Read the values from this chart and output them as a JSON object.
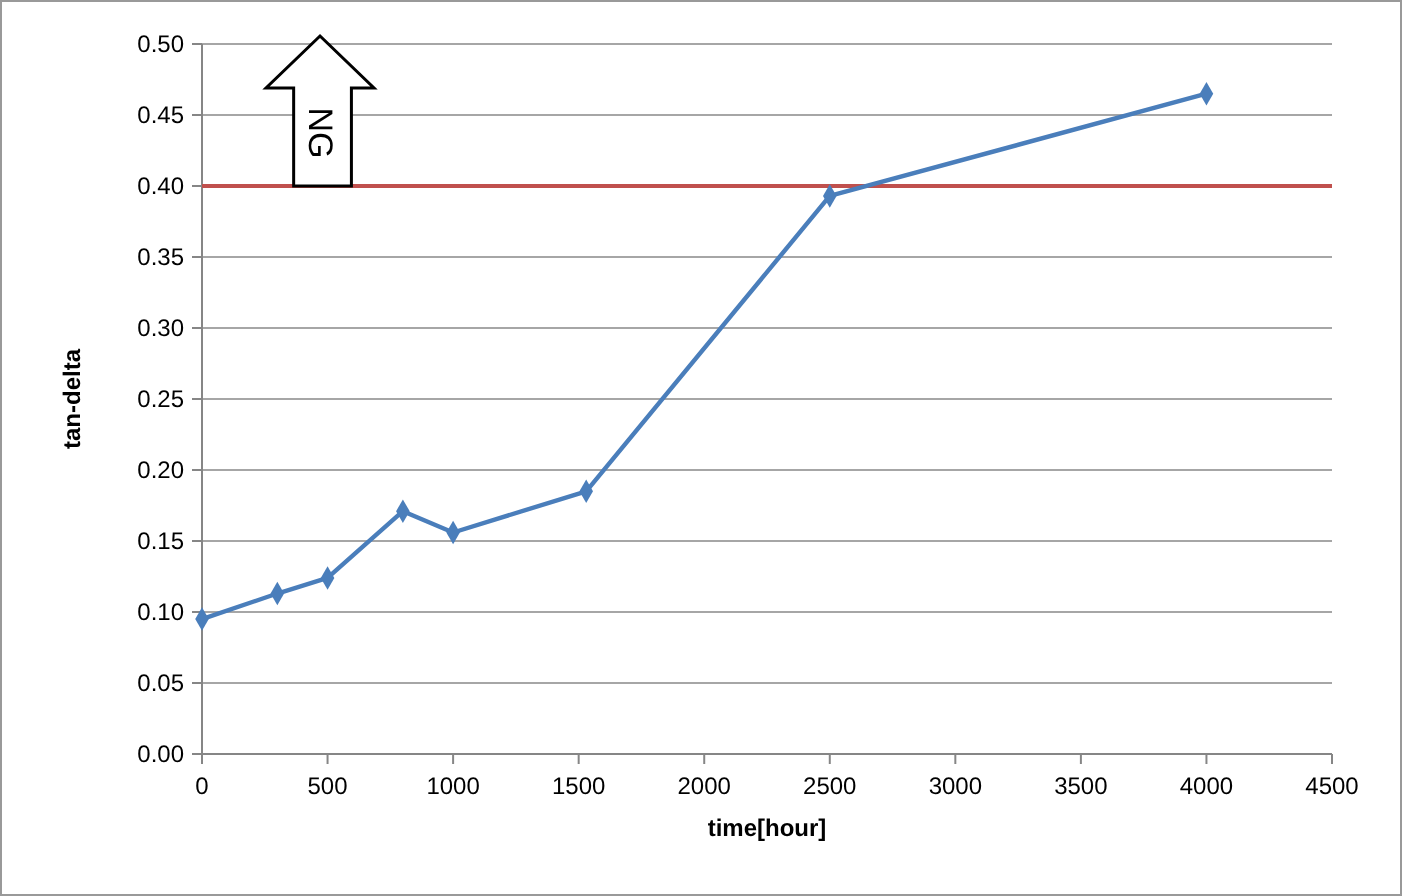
{
  "chart_data": {
    "type": "line",
    "xlabel": "time[hour]",
    "ylabel": "tan-delta",
    "x": [
      0,
      300,
      500,
      800,
      1000,
      1530,
      2500,
      4000
    ],
    "series": [
      {
        "color": "#4a7ebb",
        "values": [
          0.095,
          0.113,
          0.124,
          0.171,
          0.156,
          0.185,
          0.393,
          0.465
        ]
      }
    ],
    "xlim": [
      0,
      4500
    ],
    "xticks": [
      0,
      500,
      1000,
      1500,
      2000,
      2500,
      3000,
      3500,
      4000,
      4500
    ],
    "ylim": [
      0,
      0.5
    ],
    "yticks": [
      {
        "value": 0,
        "label": "0.00"
      },
      {
        "value": 0.05,
        "label": "0.05"
      },
      {
        "value": 0.1,
        "label": "0.10"
      },
      {
        "value": 0.15,
        "label": "0.15"
      },
      {
        "value": 0.2,
        "label": "0.20"
      },
      {
        "value": 0.25,
        "label": "0.25"
      },
      {
        "value": 0.3,
        "label": "0.30"
      },
      {
        "value": 0.35,
        "label": "0.35"
      },
      {
        "value": 0.4,
        "label": "0.40"
      },
      {
        "value": 0.45,
        "label": "0.45"
      },
      {
        "value": 0.5,
        "label": "0.50"
      }
    ],
    "grid": "y",
    "marker": "diamond",
    "line_style": "solid",
    "ref_lines": [
      {
        "axis": "y",
        "value": 0.4,
        "color": "#c0504d"
      }
    ],
    "annotations": [
      "NG"
    ]
  }
}
